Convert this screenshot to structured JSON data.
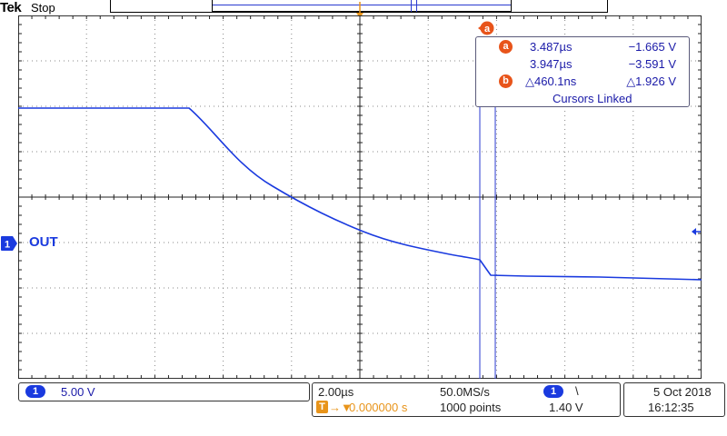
{
  "header": {
    "brand": "Tek",
    "run_status": "Stop"
  },
  "trigger_position_marker": {
    "letter": "T"
  },
  "cursor_readout": {
    "marker_a": "a",
    "marker_b": "b",
    "a_time": "3.487µs",
    "a_voltage": "−1.665 V",
    "b_time": "3.947µs",
    "b_voltage": "−3.591 V",
    "delta_time": "△460.1ns",
    "delta_voltage": "△1.926 V",
    "link_status": "Cursors Linked"
  },
  "channel": {
    "number": "1",
    "label": "OUT",
    "scale": "5.00 V",
    "color": "#1a3adf"
  },
  "timebase": {
    "scale": "2.00µs",
    "sample_rate": "50.0MS/s",
    "record_length": "1000 points",
    "trigger_delay": "0.000000 s",
    "trigger_delay_prefix": "T",
    "trigger_delay_arrow": "→▼"
  },
  "trigger": {
    "source": "1",
    "slope_glyph": "\\",
    "level": "1.40 V"
  },
  "datetime": {
    "date": "5 Oct  2018",
    "time": "16:12:35"
  },
  "colors": {
    "trace": "#1a3adf",
    "cursor": "#2a3ad0",
    "accent_orange": "#e8941a",
    "badge_orange": "#e8541a"
  }
}
